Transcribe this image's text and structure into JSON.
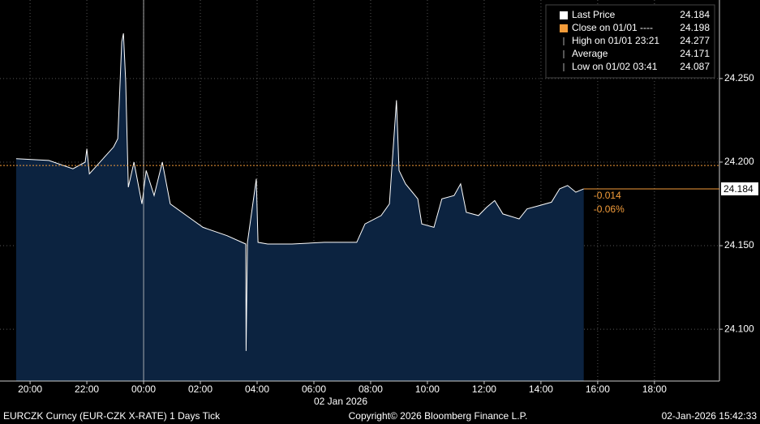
{
  "chart_data": {
    "type": "area",
    "title": "EURCZK Curncy (EUR-CZK X-RATE) 1 Days Tick",
    "copyright": "Copyright© 2026 Bloomberg Finance L.P.",
    "timestamp": "02-Jan-2026 15:42:33",
    "x_axis_label": "02 Jan 2026",
    "x": [
      -4.49,
      -3.34,
      -2.49,
      -2.06,
      -2.0,
      -1.91,
      -1.06,
      -0.91,
      -0.77,
      -0.71,
      -0.63,
      -0.54,
      -0.34,
      -0.06,
      0.09,
      0.37,
      0.66,
      0.94,
      1.51,
      2.09,
      2.94,
      3.6,
      3.61,
      3.66,
      3.97,
      4.03,
      4.37,
      5.23,
      6.37,
      7.51,
      7.8,
      8.37,
      8.66,
      8.91,
      9.0,
      9.23,
      9.66,
      9.8,
      10.23,
      10.51,
      10.94,
      11.17,
      11.37,
      11.8,
      12.09,
      12.37,
      12.66,
      13.23,
      13.51,
      13.94,
      14.37,
      14.66,
      14.94,
      15.23,
      15.51
    ],
    "series": [
      {
        "name": "Last Price",
        "color": "#ffffff",
        "fill": "#0c2340",
        "values": [
          24.202,
          24.201,
          24.196,
          24.2,
          24.208,
          24.193,
          24.209,
          24.214,
          24.272,
          24.277,
          24.248,
          24.185,
          24.2,
          24.175,
          24.195,
          24.18,
          24.2,
          24.175,
          24.168,
          24.161,
          24.156,
          24.151,
          24.087,
          24.152,
          24.19,
          24.152,
          24.151,
          24.151,
          24.152,
          24.152,
          24.163,
          24.168,
          24.175,
          24.237,
          24.195,
          24.187,
          24.178,
          24.163,
          24.161,
          24.178,
          24.18,
          24.187,
          24.17,
          24.168,
          24.173,
          24.177,
          24.169,
          24.166,
          24.172,
          24.174,
          24.176,
          24.184,
          24.186,
          24.182,
          24.184
        ]
      }
    ],
    "xlim": [
      -5.06,
      20.29
    ],
    "xticks": [
      {
        "value": -4,
        "label": "20:00"
      },
      {
        "value": -2,
        "label": "22:00"
      },
      {
        "value": 0,
        "label": "00:00"
      },
      {
        "value": 2,
        "label": "02:00"
      },
      {
        "value": 4,
        "label": "04:00"
      },
      {
        "value": 6,
        "label": "06:00"
      },
      {
        "value": 8,
        "label": "08:00"
      },
      {
        "value": 10,
        "label": "10:00"
      },
      {
        "value": 12,
        "label": "12:00"
      },
      {
        "value": 14,
        "label": "14:00"
      },
      {
        "value": 16,
        "label": "16:00"
      },
      {
        "value": 18,
        "label": "18:00"
      }
    ],
    "ylim": [
      24.069,
      24.297
    ],
    "yticks": [
      {
        "value": 24.1,
        "label": "24.100"
      },
      {
        "value": 24.15,
        "label": "24.150"
      },
      {
        "value": 24.2,
        "label": "24.200"
      },
      {
        "value": 24.25,
        "label": "24.250"
      }
    ],
    "grid": true,
    "close_line": {
      "value": 24.198,
      "color": "#f39c3a"
    },
    "last_price": {
      "value": 24.184,
      "label": "24.184",
      "color": "#f39c3a"
    },
    "change": {
      "value": -0.014,
      "label": "-0.014"
    },
    "change_pct": {
      "value": -0.06,
      "label": "-0.06%"
    },
    "legend": [
      {
        "label": "Last Price",
        "value": "24.184"
      },
      {
        "label": "Close on 01/01 ----",
        "value": "24.198"
      },
      {
        "label": "High on 01/01 23:21",
        "value": "24.277"
      },
      {
        "label": "Average",
        "value": "24.171"
      },
      {
        "label": "Low on 01/02 03:41",
        "value": "24.087"
      }
    ]
  }
}
